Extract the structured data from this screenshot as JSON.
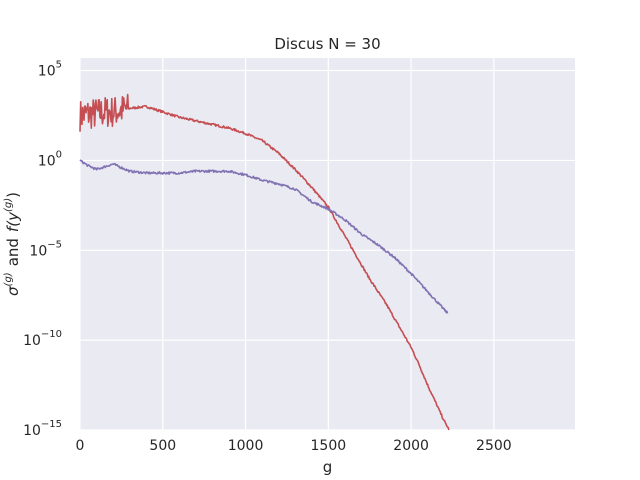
{
  "chart_data": {
    "type": "line",
    "title": "Discus N = 30",
    "xlabel": "g",
    "ylabel": {
      "sigma": "σ",
      "sigma_sup": "(g)",
      "and": "and",
      "f": "f(y",
      "f_sup": "(g)",
      "close": ")"
    },
    "xlim": [
      0,
      2990
    ],
    "ylim_log10": [
      -15,
      5.7
    ],
    "y_scale": "log",
    "grid": true,
    "background": "#eaeaf2",
    "x_ticks": [
      {
        "value": 0,
        "label": "0"
      },
      {
        "value": 500,
        "label": "500"
      },
      {
        "value": 1000,
        "label": "1000"
      },
      {
        "value": 1500,
        "label": "1500"
      },
      {
        "value": 2000,
        "label": "2000"
      },
      {
        "value": 2500,
        "label": "2500"
      }
    ],
    "y_ticks": [
      {
        "exp": 5,
        "base": "10",
        "sup": "5"
      },
      {
        "exp": 0,
        "base": "10",
        "sup": "0"
      },
      {
        "exp": -5,
        "base": "10",
        "sup": "−5"
      },
      {
        "exp": -10,
        "base": "10",
        "sup": "−10"
      },
      {
        "exp": -15,
        "base": "10",
        "sup": "−15"
      }
    ],
    "series": [
      {
        "color": "#c44e52",
        "noise_until": 290,
        "noise_amp_log10": 0.9,
        "x": [
          0,
          50,
          100,
          150,
          200,
          250,
          300,
          400,
          500,
          600,
          700,
          800,
          900,
          1000,
          1100,
          1200,
          1300,
          1400,
          1500,
          1550,
          1600,
          1650,
          1700,
          1750,
          1800,
          1850,
          1900,
          1950,
          2000,
          2050,
          2100,
          2150,
          2200,
          2230
        ],
        "log10_y": [
          2.5,
          2.6,
          2.6,
          2.7,
          2.7,
          2.8,
          2.9,
          3.0,
          2.7,
          2.4,
          2.2,
          2.0,
          1.8,
          1.5,
          1.1,
          0.4,
          -0.5,
          -1.5,
          -2.6,
          -3.4,
          -4.2,
          -5.0,
          -5.8,
          -6.6,
          -7.3,
          -8.0,
          -8.8,
          -9.6,
          -10.4,
          -11.4,
          -12.5,
          -13.5,
          -14.5,
          -15.0
        ]
      },
      {
        "color": "#8172b3",
        "noise_until": 0,
        "noise_amp_log10": 0,
        "x": [
          0,
          50,
          100,
          200,
          250,
          300,
          400,
          500,
          600,
          700,
          800,
          900,
          1000,
          1100,
          1200,
          1300,
          1400,
          1500,
          1600,
          1700,
          1800,
          1900,
          2000,
          2100,
          2200,
          2220
        ],
        "log10_y": [
          0.0,
          -0.3,
          -0.5,
          -0.2,
          -0.4,
          -0.6,
          -0.7,
          -0.7,
          -0.7,
          -0.6,
          -0.6,
          -0.6,
          -0.8,
          -1.1,
          -1.3,
          -1.6,
          -2.3,
          -2.7,
          -3.3,
          -4.1,
          -4.7,
          -5.4,
          -6.3,
          -7.3,
          -8.3,
          -8.5
        ]
      }
    ]
  }
}
